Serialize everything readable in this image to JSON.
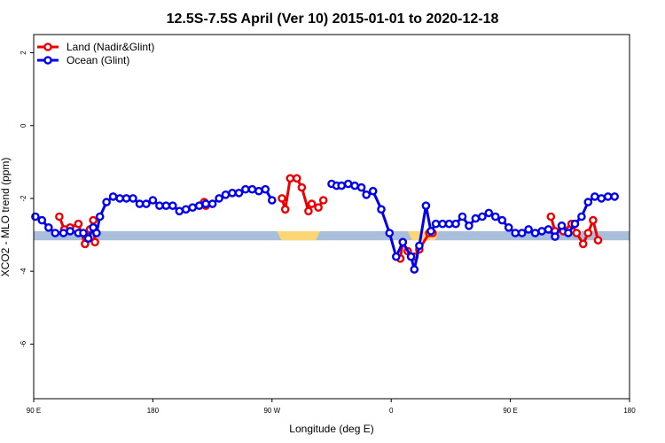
{
  "chart_data": {
    "type": "line",
    "title": "12.5S-7.5S April (Ver 10)   2015-01-01 to 2020-12-18",
    "xlabel": "Longitude (deg E)",
    "ylabel": "XCO2 - MLO trend (ppm)",
    "xlim": [
      90,
      450
    ],
    "ylim": [
      -7.5,
      2.5
    ],
    "x_ticks": [
      {
        "value": 90,
        "label": "90 E"
      },
      {
        "value": 162,
        "label": "180"
      },
      {
        "value": 234,
        "label": "90 W"
      },
      {
        "value": 306,
        "label": "0"
      },
      {
        "value": 378,
        "label": "90 E"
      },
      {
        "value": 450,
        "label": "180"
      }
    ],
    "y_ticks": [
      {
        "value": 2,
        "label": "2"
      },
      {
        "value": 0,
        "label": "0"
      },
      {
        "value": -2,
        "label": "-2"
      },
      {
        "value": -4,
        "label": "-4"
      },
      {
        "value": -6,
        "label": "-6"
      }
    ],
    "legend": {
      "position": "top-left",
      "entries": [
        {
          "name": "Land (Nadir&Glint)",
          "color": "#ee0000"
        },
        {
          "name": "Ocean (Glint)",
          "color": "#0000ee"
        }
      ]
    },
    "band": {
      "y_range": [
        -3.15,
        -2.9
      ],
      "ocean_color": "#a8bedb",
      "land_color": "#fbd675",
      "land_segments": [
        [
          237,
          263
        ],
        [
          316,
          335
        ]
      ]
    },
    "series": [
      {
        "name": "Land (Nadir&Glint)",
        "color": "#ee0000",
        "segments": [
          [
            [
              105.5,
              -2.5
            ],
            [
              108.5,
              -2.85
            ],
            [
              112,
              -2.8
            ],
            [
              117,
              -2.7
            ],
            [
              121,
              -3.25
            ],
            [
              124,
              -2.85
            ],
            [
              126,
              -2.6
            ],
            [
              127,
              -3.2
            ]
          ],
          [
            [
              193,
              -2.1
            ],
            [
              194,
              -2.2
            ]
          ],
          [
            [
              240,
              -2.0
            ],
            [
              242,
              -2.3
            ],
            [
              245,
              -1.45
            ],
            [
              249,
              -1.45
            ],
            [
              252,
              -1.7
            ],
            [
              256,
              -2.35
            ],
            [
              258,
              -2.15
            ],
            [
              262,
              -2.25
            ],
            [
              265,
              -2.05
            ]
          ],
          [
            [
              311.5,
              -3.65
            ],
            [
              313,
              -3.2
            ],
            [
              316,
              -3.45
            ],
            [
              320,
              -3.6
            ],
            [
              323,
              -3.4
            ],
            [
              329,
              -2.95
            ],
            [
              331,
              -2.95
            ]
          ],
          [
            [
              402.5,
              -2.5
            ],
            [
              405,
              -2.9
            ],
            [
              410,
              -2.9
            ],
            [
              415,
              -2.7
            ],
            [
              418,
              -2.95
            ],
            [
              422,
              -3.25
            ],
            [
              425,
              -2.95
            ],
            [
              428,
              -2.6
            ],
            [
              431,
              -3.15
            ]
          ]
        ]
      },
      {
        "name": "Ocean (Glint)",
        "color": "#0000ee",
        "segments": [
          [
            [
              91,
              -2.5
            ],
            [
              95,
              -2.6
            ],
            [
              99,
              -2.8
            ],
            [
              103,
              -2.95
            ],
            [
              108,
              -2.95
            ],
            [
              112,
              -2.9
            ],
            [
              117,
              -2.95
            ],
            [
              120,
              -2.95
            ],
            [
              123,
              -3.1
            ],
            [
              126,
              -2.8
            ],
            [
              128,
              -2.95
            ],
            [
              130,
              -2.5
            ],
            [
              134,
              -2.1
            ],
            [
              138,
              -1.95
            ],
            [
              142,
              -2.0
            ],
            [
              146,
              -2.0
            ],
            [
              150,
              -2.0
            ],
            [
              154,
              -2.15
            ],
            [
              158,
              -2.15
            ],
            [
              162,
              -2.05
            ],
            [
              166,
              -2.2
            ],
            [
              170,
              -2.2
            ],
            [
              174,
              -2.2
            ],
            [
              178,
              -2.35
            ],
            [
              182,
              -2.3
            ],
            [
              186,
              -2.25
            ],
            [
              190,
              -2.2
            ],
            [
              194,
              -2.15
            ],
            [
              198,
              -2.15
            ],
            [
              202,
              -2.0
            ],
            [
              206,
              -1.9
            ],
            [
              210,
              -1.85
            ],
            [
              214,
              -1.85
            ],
            [
              218,
              -1.75
            ],
            [
              222,
              -1.75
            ],
            [
              226,
              -1.8
            ],
            [
              230,
              -1.75
            ],
            [
              234,
              -2.05
            ]
          ],
          [
            [
              270,
              -1.6
            ],
            [
              273,
              -1.65
            ],
            [
              276,
              -1.65
            ],
            [
              280,
              -1.6
            ],
            [
              284,
              -1.65
            ],
            [
              288,
              -1.7
            ],
            [
              291,
              -1.9
            ],
            [
              295,
              -1.8
            ],
            [
              300,
              -2.3
            ],
            [
              305,
              -2.95
            ],
            [
              309,
              -3.6
            ],
            [
              313,
              -3.2
            ],
            [
              318,
              -3.6
            ],
            [
              320,
              -3.95
            ],
            [
              323,
              -3.3
            ],
            [
              327,
              -2.2
            ],
            [
              330,
              -2.9
            ],
            [
              333,
              -2.7
            ],
            [
              337,
              -2.7
            ],
            [
              341,
              -2.7
            ],
            [
              345,
              -2.7
            ],
            [
              349,
              -2.5
            ],
            [
              353,
              -2.75
            ],
            [
              357,
              -2.55
            ],
            [
              361,
              -2.5
            ],
            [
              365,
              -2.4
            ],
            [
              369,
              -2.5
            ],
            [
              373,
              -2.6
            ],
            [
              377,
              -2.8
            ],
            [
              381,
              -2.95
            ],
            [
              385,
              -2.95
            ],
            [
              389,
              -2.85
            ],
            [
              393,
              -2.95
            ],
            [
              397,
              -2.9
            ],
            [
              401,
              -2.85
            ],
            [
              405,
              -3.05
            ],
            [
              409,
              -2.75
            ],
            [
              413,
              -2.95
            ],
            [
              417,
              -2.7
            ],
            [
              421,
              -2.5
            ],
            [
              425,
              -2.1
            ],
            [
              429,
              -1.95
            ],
            [
              433,
              -2.0
            ],
            [
              437,
              -1.95
            ],
            [
              441,
              -1.95
            ]
          ]
        ]
      }
    ]
  }
}
